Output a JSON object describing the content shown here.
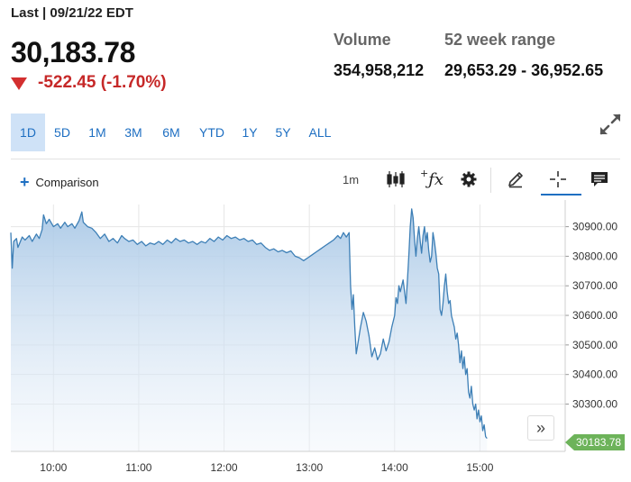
{
  "quote": {
    "last_label": "Last | 09/21/22 EDT",
    "price": "30,183.78",
    "change": "-522.45 (-1.70%)",
    "direction": "down"
  },
  "stats": {
    "volume_label": "Volume",
    "volume_value": "354,958,212",
    "range_label": "52 week range",
    "range_value": "29,653.29 - 36,952.65"
  },
  "range_tabs": [
    {
      "label": "1D",
      "active": true
    },
    {
      "label": "5D",
      "active": false
    },
    {
      "label": "1M",
      "active": false
    },
    {
      "label": "3M",
      "active": false
    },
    {
      "label": "6M",
      "active": false
    },
    {
      "label": "YTD",
      "active": false
    },
    {
      "label": "1Y",
      "active": false
    },
    {
      "label": "5Y",
      "active": false
    },
    {
      "label": "ALL",
      "active": false
    }
  ],
  "toolbar": {
    "comparison_label": "Comparison",
    "interval_label": "1m"
  },
  "icons": {
    "expand": "expand-icon",
    "candlestick": "candlestick-icon",
    "indicators": "function-icon",
    "settings": "gear-icon",
    "draw": "pencil-icon",
    "crosshair": "crosshair-icon",
    "comment": "comment-icon",
    "scroll": "double-chevron-right-icon"
  },
  "colors": {
    "accent": "#1e6fc2",
    "down": "#c62828",
    "line": "#3d7fb6",
    "badge": "#6db35a"
  },
  "chart_data": {
    "type": "area",
    "x_tick_labels": [
      "10:00",
      "11:00",
      "12:00",
      "13:00",
      "14:00",
      "15:00"
    ],
    "y_tick_labels": [
      "30900.00",
      "30800.00",
      "30700.00",
      "30600.00",
      "30500.00",
      "30400.00",
      "30300.00"
    ],
    "ylim": [
      30140,
      30975
    ],
    "x_range_minutes": [
      570,
      960
    ],
    "last_value_label": "30183.78",
    "points": [
      [
        570,
        30880
      ],
      [
        571,
        30760
      ],
      [
        572,
        30850
      ],
      [
        574,
        30860
      ],
      [
        575,
        30830
      ],
      [
        578,
        30865
      ],
      [
        580,
        30855
      ],
      [
        583,
        30870
      ],
      [
        585,
        30850
      ],
      [
        588,
        30875
      ],
      [
        590,
        30860
      ],
      [
        592,
        30890
      ],
      [
        593,
        30940
      ],
      [
        595,
        30910
      ],
      [
        597,
        30925
      ],
      [
        600,
        30900
      ],
      [
        603,
        30910
      ],
      [
        605,
        30895
      ],
      [
        608,
        30915
      ],
      [
        610,
        30900
      ],
      [
        613,
        30910
      ],
      [
        615,
        30895
      ],
      [
        618,
        30920
      ],
      [
        620,
        30950
      ],
      [
        621,
        30915
      ],
      [
        624,
        30900
      ],
      [
        627,
        30895
      ],
      [
        630,
        30880
      ],
      [
        633,
        30860
      ],
      [
        636,
        30875
      ],
      [
        639,
        30850
      ],
      [
        642,
        30860
      ],
      [
        645,
        30845
      ],
      [
        648,
        30870
      ],
      [
        650,
        30860
      ],
      [
        653,
        30850
      ],
      [
        656,
        30855
      ],
      [
        659,
        30840
      ],
      [
        662,
        30850
      ],
      [
        665,
        30835
      ],
      [
        668,
        30845
      ],
      [
        671,
        30840
      ],
      [
        674,
        30850
      ],
      [
        677,
        30840
      ],
      [
        680,
        30855
      ],
      [
        683,
        30845
      ],
      [
        686,
        30860
      ],
      [
        689,
        30850
      ],
      [
        692,
        30855
      ],
      [
        695,
        30845
      ],
      [
        698,
        30850
      ],
      [
        701,
        30840
      ],
      [
        704,
        30850
      ],
      [
        707,
        30845
      ],
      [
        710,
        30860
      ],
      [
        713,
        30850
      ],
      [
        716,
        30865
      ],
      [
        719,
        30855
      ],
      [
        722,
        30870
      ],
      [
        725,
        30860
      ],
      [
        728,
        30865
      ],
      [
        731,
        30855
      ],
      [
        734,
        30860
      ],
      [
        737,
        30850
      ],
      [
        740,
        30855
      ],
      [
        743,
        30840
      ],
      [
        746,
        30845
      ],
      [
        749,
        30830
      ],
      [
        752,
        30820
      ],
      [
        755,
        30825
      ],
      [
        758,
        30815
      ],
      [
        761,
        30820
      ],
      [
        764,
        30812
      ],
      [
        767,
        30818
      ],
      [
        770,
        30800
      ],
      [
        773,
        30795
      ],
      [
        776,
        30785
      ],
      [
        779,
        30795
      ],
      [
        782,
        30805
      ],
      [
        785,
        30815
      ],
      [
        788,
        30825
      ],
      [
        791,
        30835
      ],
      [
        794,
        30845
      ],
      [
        797,
        30855
      ],
      [
        800,
        30870
      ],
      [
        802,
        30860
      ],
      [
        804,
        30880
      ],
      [
        806,
        30865
      ],
      [
        808,
        30880
      ],
      [
        809,
        30700
      ],
      [
        810,
        30620
      ],
      [
        811,
        30670
      ],
      [
        812,
        30560
      ],
      [
        813,
        30470
      ],
      [
        814,
        30500
      ],
      [
        816,
        30560
      ],
      [
        818,
        30610
      ],
      [
        820,
        30580
      ],
      [
        822,
        30530
      ],
      [
        824,
        30460
      ],
      [
        826,
        30490
      ],
      [
        828,
        30450
      ],
      [
        830,
        30470
      ],
      [
        832,
        30520
      ],
      [
        834,
        30480
      ],
      [
        836,
        30510
      ],
      [
        838,
        30560
      ],
      [
        840,
        30600
      ],
      [
        841,
        30660
      ],
      [
        842,
        30640
      ],
      [
        843,
        30700
      ],
      [
        844,
        30680
      ],
      [
        846,
        30720
      ],
      [
        848,
        30640
      ],
      [
        849,
        30720
      ],
      [
        850,
        30800
      ],
      [
        851,
        30900
      ],
      [
        852,
        30960
      ],
      [
        853,
        30930
      ],
      [
        854,
        30860
      ],
      [
        855,
        30800
      ],
      [
        856,
        30860
      ],
      [
        857,
        30900
      ],
      [
        858,
        30850
      ],
      [
        859,
        30810
      ],
      [
        860,
        30870
      ],
      [
        861,
        30900
      ],
      [
        862,
        30850
      ],
      [
        863,
        30880
      ],
      [
        864,
        30820
      ],
      [
        865,
        30780
      ],
      [
        866,
        30800
      ],
      [
        867,
        30880
      ],
      [
        868,
        30850
      ],
      [
        869,
        30810
      ],
      [
        870,
        30760
      ],
      [
        871,
        30740
      ],
      [
        872,
        30620
      ],
      [
        873,
        30600
      ],
      [
        874,
        30640
      ],
      [
        875,
        30700
      ],
      [
        876,
        30740
      ],
      [
        877,
        30680
      ],
      [
        878,
        30640
      ],
      [
        879,
        30650
      ],
      [
        880,
        30600
      ],
      [
        881,
        30580
      ],
      [
        882,
        30560
      ],
      [
        883,
        30520
      ],
      [
        884,
        30540
      ],
      [
        885,
        30500
      ],
      [
        886,
        30440
      ],
      [
        887,
        30480
      ],
      [
        888,
        30420
      ],
      [
        889,
        30460
      ],
      [
        890,
        30400
      ],
      [
        891,
        30420
      ],
      [
        892,
        30340
      ],
      [
        893,
        30320
      ],
      [
        894,
        30360
      ],
      [
        895,
        30300
      ],
      [
        896,
        30280
      ],
      [
        897,
        30300
      ],
      [
        898,
        30250
      ],
      [
        899,
        30280
      ],
      [
        900,
        30240
      ],
      [
        901,
        30260
      ],
      [
        902,
        30210
      ],
      [
        903,
        30230
      ],
      [
        904,
        30190
      ],
      [
        905,
        30183.78
      ]
    ]
  }
}
